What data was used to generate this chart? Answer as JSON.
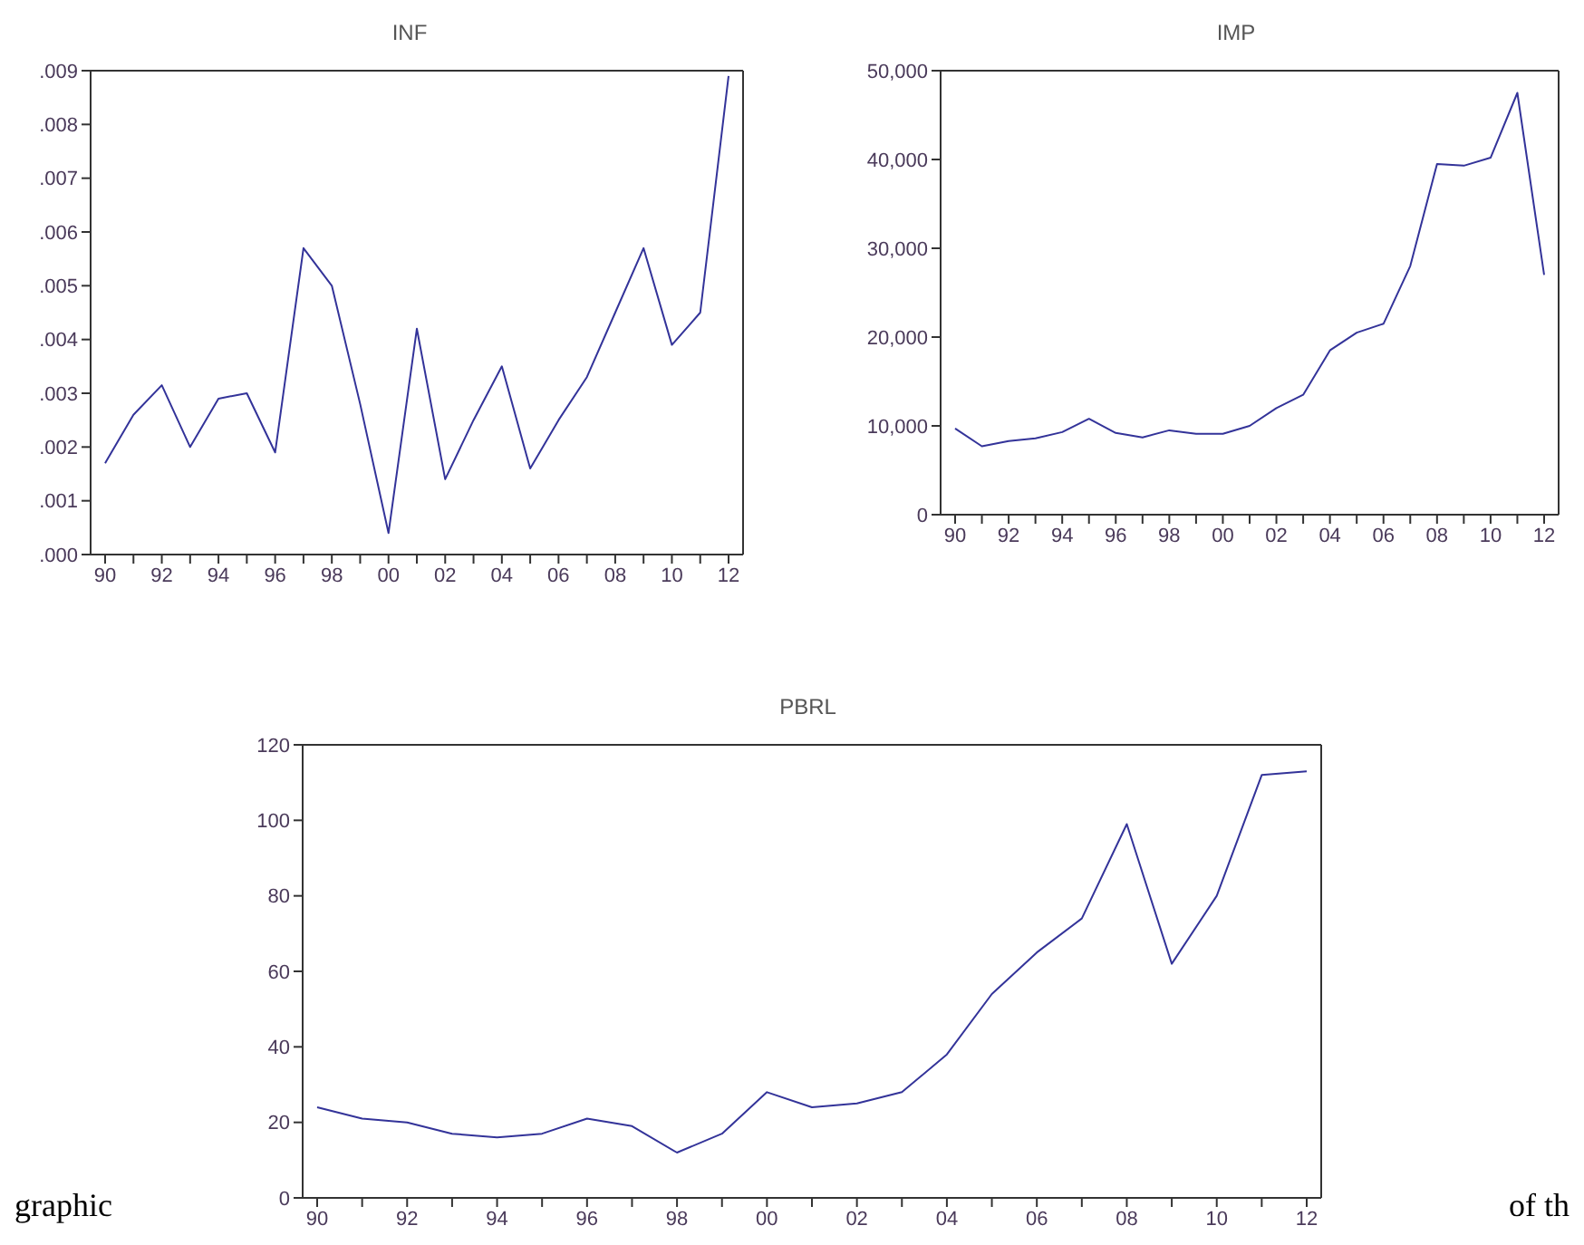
{
  "chart_data": [
    {
      "type": "line",
      "title": "INF",
      "categories": [
        "90",
        null,
        "92",
        null,
        "94",
        null,
        "96",
        null,
        "98",
        null,
        "00",
        null,
        "02",
        null,
        "04",
        null,
        "06",
        null,
        "08",
        null,
        "10",
        null,
        "12"
      ],
      "series": [
        {
          "color": "#333399",
          "values": [
            0.0017,
            0.0026,
            0.00315,
            0.002,
            0.0029,
            0.003,
            0.0019,
            0.0057,
            0.005,
            0.0028,
            0.0004,
            0.0042,
            0.0014,
            0.0025,
            0.0035,
            0.0016,
            0.0025,
            0.0033,
            0.0045,
            0.0057,
            0.0039,
            0.0045,
            0.0089
          ]
        }
      ],
      "ylim": [
        0,
        0.009
      ],
      "yticks": [
        {
          "value": 0,
          "label": ".000"
        },
        {
          "value": 0.001,
          "label": ".001"
        },
        {
          "value": 0.002,
          "label": ".002"
        },
        {
          "value": 0.003,
          "label": ".003"
        },
        {
          "value": 0.004,
          "label": ".004"
        },
        {
          "value": 0.005,
          "label": ".005"
        },
        {
          "value": 0.006,
          "label": ".006"
        },
        {
          "value": 0.007,
          "label": ".007"
        },
        {
          "value": 0.008,
          "label": ".008"
        },
        {
          "value": 0.009,
          "label": ".009"
        }
      ],
      "grid": false
    },
    {
      "type": "line",
      "title": "IMP",
      "categories": [
        "90",
        null,
        "92",
        null,
        "94",
        null,
        "96",
        null,
        "98",
        null,
        "00",
        null,
        "02",
        null,
        "04",
        null,
        "06",
        null,
        "08",
        null,
        "10",
        null,
        "12"
      ],
      "series": [
        {
          "color": "#333399",
          "values": [
            9700,
            7700,
            8300,
            8600,
            9300,
            10800,
            9200,
            8700,
            9500,
            9100,
            9100,
            10000,
            12000,
            13500,
            18500,
            20500,
            21500,
            28000,
            39500,
            39300,
            40200,
            47500,
            27000
          ]
        }
      ],
      "ylim": [
        0,
        50000
      ],
      "yticks": [
        0,
        {
          "value": 10000,
          "label": "10,000"
        },
        {
          "value": 20000,
          "label": "20,000"
        },
        {
          "value": 30000,
          "label": "30,000"
        },
        {
          "value": 40000,
          "label": "40,000"
        },
        {
          "value": 50000,
          "label": "50,000"
        }
      ],
      "grid": false
    },
    {
      "type": "line",
      "title": "PBRL",
      "categories": [
        "90",
        null,
        "92",
        null,
        "94",
        null,
        "96",
        null,
        "98",
        null,
        "00",
        null,
        "02",
        null,
        "04",
        null,
        "06",
        null,
        "08",
        null,
        "10",
        null,
        "12"
      ],
      "series": [
        {
          "color": "#333399",
          "values": [
            24,
            21,
            20,
            17,
            16,
            17,
            21,
            19,
            12,
            17,
            28,
            24,
            25,
            28,
            38,
            54,
            65,
            74,
            99,
            62,
            80,
            112,
            113
          ]
        }
      ],
      "ylim": [
        0,
        120
      ],
      "yticks": [
        0,
        20,
        40,
        60,
        80,
        100,
        120
      ],
      "grid": false,
      "annotations": [
        "graphic",
        "of th"
      ]
    }
  ]
}
